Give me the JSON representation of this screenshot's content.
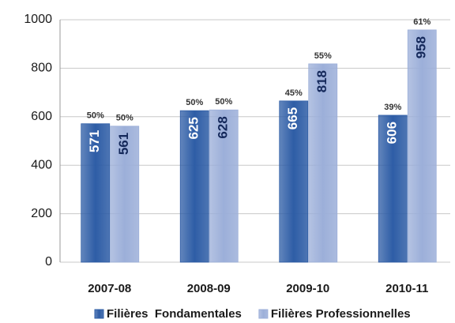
{
  "chart_data": {
    "type": "bar",
    "categories": [
      "2007-08",
      "2008-09",
      "2009-10",
      "2010-11"
    ],
    "series": [
      {
        "name": "Filières  Fondamentales",
        "color": "#2e5da6",
        "values": [
          571,
          625,
          665,
          606
        ],
        "share_labels": [
          "50%",
          "50%",
          "45%",
          "39%"
        ]
      },
      {
        "name": "Filières Professionnelles",
        "color": "#9cafd9",
        "values": [
          561,
          628,
          818,
          958
        ],
        "share_labels": [
          "50%",
          "50%",
          "55%",
          "61%"
        ]
      }
    ],
    "ylim": [
      0,
      1000
    ],
    "yticks": [
      0,
      200,
      400,
      600,
      800,
      1000
    ],
    "grid": true,
    "legend": "bottom"
  }
}
